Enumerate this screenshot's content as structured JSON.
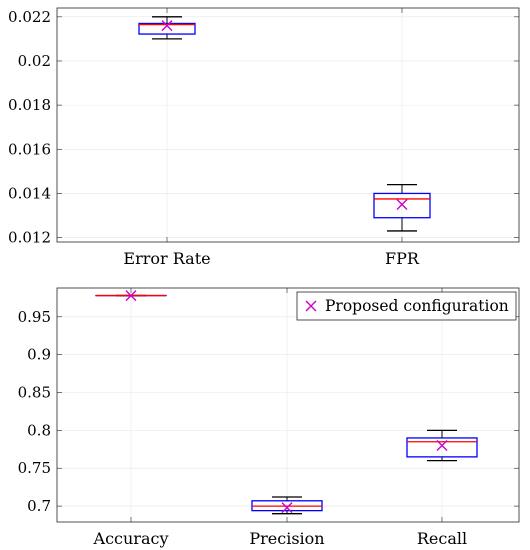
{
  "chart_data": [
    {
      "type": "box",
      "categories": [
        "Error Rate",
        "FPR"
      ],
      "ylim": [
        0.0118,
        0.0224
      ],
      "yticks": [
        0.012,
        0.014,
        0.016,
        0.018,
        0.02,
        0.022
      ],
      "ytick_labels": [
        "0.012",
        "0.014",
        "0.016",
        "0.018",
        "0.02",
        "0.022"
      ],
      "grid": true,
      "boxes": [
        {
          "whisker_low": 0.021,
          "q1": 0.02122,
          "median": 0.02165,
          "q3": 0.0217,
          "whisker_high": 0.022,
          "marker": 0.0216
        },
        {
          "whisker_low": 0.0123,
          "q1": 0.0129,
          "median": 0.01375,
          "q3": 0.014,
          "whisker_high": 0.0144,
          "marker": 0.0135
        }
      ]
    },
    {
      "type": "box",
      "categories": [
        "Accuracy",
        "Precision",
        "Recall"
      ],
      "ylim": [
        0.679,
        0.988
      ],
      "yticks": [
        0.7,
        0.75,
        0.8,
        0.85,
        0.9,
        0.95
      ],
      "ytick_labels": [
        "0.7",
        "0.75",
        "0.8",
        "0.85",
        "0.9",
        "0.95"
      ],
      "grid": true,
      "legend": {
        "label": "Proposed configuration",
        "placement": "top-right"
      },
      "boxes": [
        {
          "whisker_low": 0.978,
          "q1": 0.978,
          "median": 0.978,
          "q3": 0.978,
          "whisker_high": 0.978,
          "marker": 0.978
        },
        {
          "whisker_low": 0.69,
          "q1": 0.694,
          "median": 0.7,
          "q3": 0.707,
          "whisker_high": 0.712,
          "marker": 0.698
        },
        {
          "whisker_low": 0.76,
          "q1": 0.765,
          "median": 0.785,
          "q3": 0.79,
          "whisker_high": 0.8,
          "marker": 0.78
        }
      ]
    }
  ],
  "colors": {
    "box": "#0000ff",
    "median": "#ff0000",
    "whisker": "#000000",
    "marker": "#cc00cc"
  }
}
